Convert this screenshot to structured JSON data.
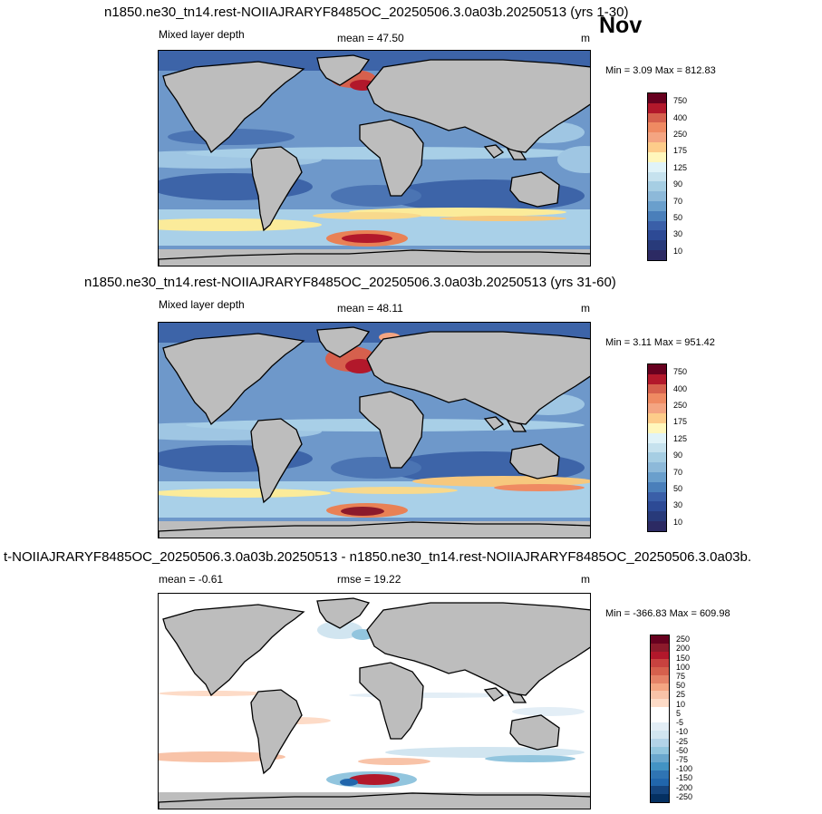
{
  "month": "Nov",
  "panels": [
    {
      "title": "n1850.ne30_tn14.rest-NOIIAJRARYF8485OC_20250506.3.0a03b.20250513 (yrs 1-30)",
      "left_label": "Mixed layer depth",
      "center_label": "mean =  47.50",
      "unit": "m",
      "minmax": "Min =   3.09 Max = 812.83"
    },
    {
      "title": "n1850.ne30_tn14.rest-NOIIAJRARYF8485OC_20250506.3.0a03b.20250513 (yrs 31-60)",
      "left_label": "Mixed layer depth",
      "center_label": "mean =  48.11",
      "unit": "m",
      "minmax": "Min =   3.11 Max = 951.42"
    },
    {
      "title": "t-NOIIAJRARYF8485OC_20250506.3.0a03b.20250513 - n1850.ne30_tn14.rest-NOIIAJRARYF8485OC_20250506.3.0a03b.",
      "left_label": "mean =  -0.61",
      "center_label": "rmse =  19.22",
      "unit": "m",
      "minmax": "Min = -366.83 Max = 609.98"
    }
  ],
  "colorbar_abs": {
    "labels": [
      "750",
      "400",
      "250",
      "175",
      "125",
      "90",
      "70",
      "50",
      "30",
      "10"
    ],
    "colors": [
      "#67001f",
      "#b2182b",
      "#d6604d",
      "#ef8a62",
      "#f4a582",
      "#fdcc8a",
      "#fff7bc",
      "#e0f3f8",
      "#c6e2ee",
      "#a6cee3",
      "#8db9d9",
      "#6a9fcc",
      "#4a7fba",
      "#3a5fa8",
      "#2d4a95",
      "#283a7a",
      "#2c2a63"
    ]
  },
  "colorbar_diff": {
    "labels": [
      "250",
      "200",
      "150",
      "100",
      "75",
      "50",
      "25",
      "10",
      "5",
      "-5",
      "-10",
      "-25",
      "-50",
      "-75",
      "-100",
      "-150",
      "-200",
      "-250"
    ],
    "colors": [
      "#67001f",
      "#8c1a2b",
      "#b2182b",
      "#c8423f",
      "#d6604d",
      "#e58267",
      "#f4a582",
      "#f8c3a8",
      "#fddbc7",
      "#ffffff",
      "#ffffff",
      "#e3eef6",
      "#d1e5f0",
      "#b3d3e8",
      "#92c5de",
      "#6aa7cd",
      "#4393c3",
      "#2f74b3",
      "#2166ac",
      "#15457f",
      "#053061"
    ]
  }
}
